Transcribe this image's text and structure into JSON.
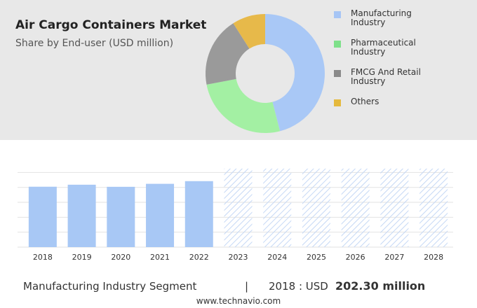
{
  "header": {
    "title": "Air Cargo Containers Market",
    "subtitle": "Share by End-user (USD million)"
  },
  "chart_data": [
    {
      "type": "donut",
      "categories": [
        "Manufacturing Industry",
        "Pharmaceutical Industry",
        "FMCG And Retail Industry",
        "Others"
      ],
      "values": [
        46,
        26,
        19,
        9
      ],
      "colors": [
        "#a9c8f6",
        "#a3f0a3",
        "#9a9a9a",
        "#e7b94a"
      ],
      "legend_colors": [
        "#a6c5f5",
        "#7ee08a",
        "#8a8a8a",
        "#e5b93d"
      ]
    },
    {
      "type": "bar",
      "categories": [
        "2018",
        "2019",
        "2020",
        "2021",
        "2022",
        "2023",
        "2024",
        "2025",
        "2026",
        "2027",
        "2028"
      ],
      "values": [
        202.3,
        209,
        202,
        212,
        221,
        263,
        263,
        263,
        263,
        263,
        263
      ],
      "hatched": [
        false,
        false,
        false,
        false,
        false,
        true,
        true,
        true,
        true,
        true,
        true
      ],
      "color": "#a8c8f5",
      "hatch_color": "#c5d8f5",
      "ylim": [
        0,
        265
      ],
      "yticks": [
        0,
        50,
        100,
        150,
        200,
        250
      ],
      "grid": true
    }
  ],
  "footer": {
    "segment": "Manufacturing Industry Segment",
    "separator": "|",
    "year_label": "2018 : USD",
    "value": "202.30 million",
    "website": "www.technavio.com"
  }
}
